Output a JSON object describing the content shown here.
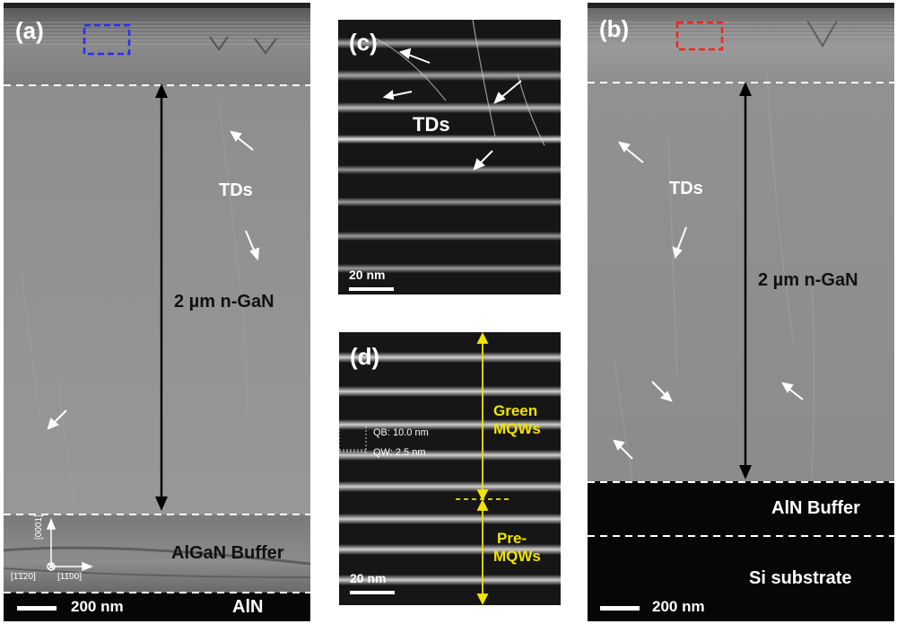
{
  "panel_a": {
    "label": "(a)",
    "thickness": "2 µm n-GaN",
    "tds": "TDs",
    "buffer": "AlGaN Buffer",
    "scalebar": "200 nm",
    "bottom_layer": "AlN",
    "axis_vertical": "[0001]",
    "axis_left": "[1̄1̄20]",
    "axis_right": "[11̄00]",
    "box_color": "#2b2bff"
  },
  "panel_b": {
    "label": "(b)",
    "thickness": "2 µm n-GaN",
    "tds": "TDs",
    "buffer": "AlN Buffer",
    "substrate": "Si substrate",
    "scalebar": "200 nm",
    "box_color": "#ff2020"
  },
  "panel_c": {
    "label": "(c)",
    "tds": "TDs",
    "scalebar": "20 nm"
  },
  "panel_d": {
    "label": "(d)",
    "qb": "QB: 10.0 nm",
    "qw": "QW: 2.5 nm",
    "green": [
      "Green",
      "MQWs"
    ],
    "pre": [
      "Pre-",
      "MQWs"
    ],
    "scalebar": "20 nm",
    "annotation_color": "#f2e400"
  }
}
